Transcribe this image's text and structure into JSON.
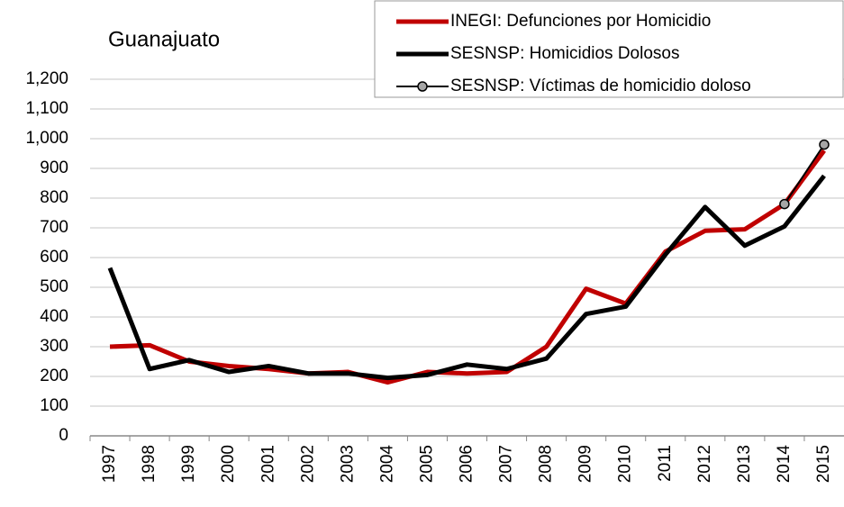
{
  "chart_data": {
    "type": "line",
    "title": "Guanajuato",
    "categories": [
      "1997",
      "1998",
      "1999",
      "2000",
      "2001",
      "2002",
      "2003",
      "2004",
      "2005",
      "2006",
      "2007",
      "2008",
      "2009",
      "2010",
      "2011",
      "2012",
      "2013",
      "2014",
      "2015"
    ],
    "series": [
      {
        "name": "INEGI: Defunciones por Homicidio",
        "color": "#c00000",
        "values": [
          300,
          305,
          250,
          235,
          225,
          210,
          215,
          180,
          215,
          210,
          215,
          300,
          495,
          445,
          620,
          690,
          695,
          780,
          960
        ]
      },
      {
        "name": "SESNSP: Homicidios Dolosos",
        "color": "#000000",
        "values": [
          565,
          225,
          255,
          215,
          235,
          210,
          210,
          195,
          205,
          240,
          225,
          260,
          410,
          435,
          610,
          770,
          640,
          705,
          875
        ]
      },
      {
        "name": "SESNSP: Víctimas de homicidio doloso",
        "color": "#a6a6a6",
        "values": [
          null,
          null,
          null,
          null,
          null,
          null,
          null,
          null,
          null,
          null,
          null,
          null,
          null,
          null,
          null,
          null,
          null,
          780,
          980
        ]
      }
    ],
    "ylim": [
      0,
      1200
    ],
    "yticks": [
      0,
      100,
      200,
      300,
      400,
      500,
      600,
      700,
      800,
      900,
      {
        "value": 1000,
        "label": "1,000"
      },
      {
        "value": 1100,
        "label": "1,100"
      },
      {
        "value": 1200,
        "label": "1,200"
      }
    ],
    "grid": true,
    "legend": "top-right"
  }
}
